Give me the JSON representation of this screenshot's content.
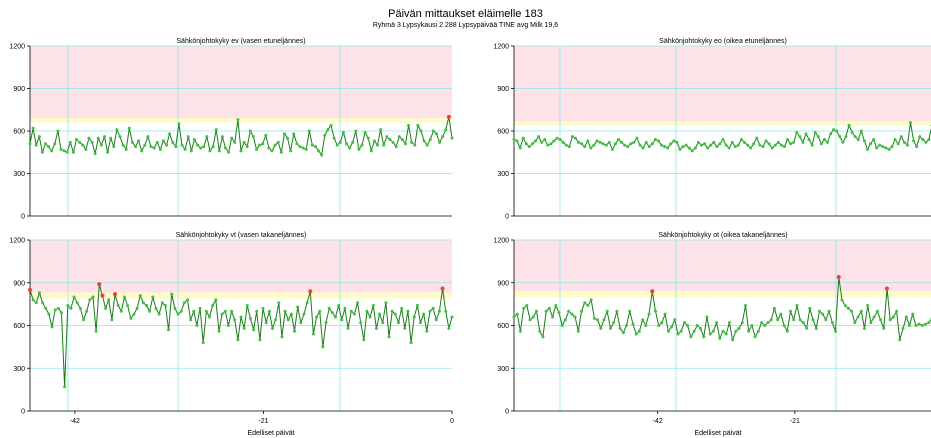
{
  "header": {
    "title": "Päivän mittaukset eläimelle 183",
    "subtitle": "Ryhmä 3   Lypsykausi 2   288 Lypsypäivää   TINE   avg Milk 19,6"
  },
  "colors": {
    "red_zone": "#fde3e7",
    "yellow_zone": "#fdfbc6",
    "grid": "#8ee6ec",
    "line": "#1a7a1a",
    "point": "#3cc23c",
    "alert_point": "#e84040"
  },
  "chart_data": [
    {
      "type": "line",
      "title": "Sähkönjohtokyky ev (vasen etuneljännes)",
      "ylim": [
        0,
        1200
      ],
      "yticks": [
        0,
        300,
        600,
        900,
        1200
      ],
      "xticks": [],
      "xlabel": "",
      "zones": {
        "yellow": [
          660,
          690
        ],
        "red": [
          690,
          1200
        ]
      },
      "series": [
        {
          "values": [
            510,
            620,
            500,
            560,
            450,
            510,
            490,
            460,
            510,
            600,
            470,
            460,
            450,
            520,
            450,
            540,
            520,
            500,
            470,
            550,
            520,
            440,
            550,
            500,
            560,
            450,
            550,
            490,
            610,
            560,
            500,
            470,
            620,
            520,
            490,
            530,
            460,
            500,
            560,
            490,
            480,
            520,
            470,
            530,
            500,
            580,
            520,
            490,
            650,
            500,
            470,
            560,
            460,
            540,
            500,
            480,
            490,
            560,
            460,
            490,
            610,
            460,
            560,
            480,
            450,
            550,
            520,
            680,
            460,
            520,
            490,
            600,
            560,
            470,
            500,
            510,
            570,
            480,
            460,
            500,
            520,
            450,
            580,
            550,
            460,
            580,
            510,
            490,
            480,
            470,
            600,
            500,
            490,
            460,
            430,
            570,
            610,
            640,
            550,
            500,
            520,
            590,
            510,
            480,
            520,
            600,
            470,
            500,
            590,
            550,
            460,
            530,
            500,
            610,
            500,
            560,
            540,
            520,
            490,
            560,
            540,
            510,
            640,
            520,
            500,
            640,
            600,
            530,
            500,
            540,
            600,
            580,
            520,
            560,
            610,
            700,
            550
          ]
        }
      ],
      "alerts": [
        135
      ]
    },
    {
      "type": "line",
      "title": "Sähkönjohtokyky eo (oikea etuneljännes)",
      "ylim": [
        0,
        1200
      ],
      "yticks": [
        0,
        300,
        600,
        900,
        1200
      ],
      "xticks": [],
      "xlabel": "",
      "zones": {
        "yellow": [
          640,
          670
        ],
        "red": [
          670,
          1200
        ]
      },
      "series": [
        {
          "values": [
            540,
            530,
            480,
            550,
            510,
            490,
            510,
            530,
            560,
            520,
            540,
            500,
            510,
            530,
            550,
            540,
            520,
            500,
            490,
            560,
            550,
            520,
            510,
            490,
            530,
            480,
            500,
            530,
            520,
            510,
            500,
            520,
            470,
            510,
            540,
            520,
            500,
            490,
            510,
            520,
            550,
            500,
            480,
            520,
            490,
            510,
            540,
            530,
            500,
            490,
            480,
            510,
            530,
            520,
            470,
            490,
            500,
            480,
            460,
            480,
            520,
            500,
            510,
            480,
            500,
            520,
            490,
            510,
            540,
            500,
            480,
            520,
            490,
            500,
            540,
            520,
            500,
            480,
            510,
            550,
            500,
            490,
            530,
            510,
            480,
            500,
            520,
            500,
            490,
            540,
            510,
            520,
            590,
            560,
            520,
            580,
            540,
            500,
            590,
            560,
            510,
            540,
            520,
            580,
            610,
            600,
            560,
            520,
            560,
            640,
            590,
            560,
            540,
            600,
            530,
            470,
            510,
            540,
            480,
            500,
            490,
            480,
            470,
            490,
            540,
            510,
            560,
            520,
            500,
            660,
            530,
            490,
            560,
            540,
            520,
            540,
            640
          ]
        }
      ],
      "alerts": []
    },
    {
      "type": "line",
      "title": "Sähkönjohtokyky vt (vasen takaneljännes)",
      "ylim": [
        0,
        1200
      ],
      "yticks": [
        0,
        300,
        600,
        900,
        1200
      ],
      "xticks": [
        -42,
        -21,
        0
      ],
      "xlabel": "Edelliset päivät",
      "zones": {
        "yellow": [
          790,
          830
        ],
        "red": [
          830,
          1200
        ]
      },
      "series": [
        {
          "values": [
            850,
            780,
            760,
            830,
            760,
            720,
            680,
            590,
            710,
            720,
            690,
            170,
            740,
            720,
            800,
            760,
            720,
            640,
            700,
            780,
            800,
            560,
            890,
            810,
            720,
            780,
            640,
            820,
            740,
            700,
            800,
            740,
            650,
            680,
            720,
            810,
            760,
            740,
            700,
            800,
            720,
            680,
            760,
            740,
            570,
            820,
            720,
            680,
            700,
            760,
            780,
            640,
            700,
            600,
            720,
            480,
            700,
            660,
            740,
            780,
            560,
            680,
            700,
            600,
            700,
            640,
            500,
            660,
            580,
            740,
            650,
            570,
            700,
            500,
            720,
            620,
            700,
            580,
            640,
            760,
            520,
            700,
            640,
            680,
            560,
            730,
            620,
            680,
            760,
            840,
            540,
            660,
            700,
            450,
            620,
            720,
            690,
            660,
            740,
            640,
            720,
            580,
            700,
            680,
            760,
            620,
            500,
            700,
            660,
            740,
            580,
            680,
            620,
            760,
            520,
            700,
            680,
            620,
            720,
            580,
            700,
            480,
            660,
            740,
            620,
            680,
            560,
            700,
            720,
            640,
            700,
            860,
            700,
            580,
            660
          ]
        }
      ],
      "alerts": [
        0,
        22,
        23,
        27,
        89,
        131
      ]
    },
    {
      "type": "line",
      "title": "Sähkönjohtokyky ot (oikea takaneljännes)",
      "ylim": [
        0,
        1200
      ],
      "yticks": [
        0,
        300,
        600,
        900,
        1200
      ],
      "xticks": [
        -42,
        -21
      ],
      "xlabel": "Edelliset päivät",
      "zones": {
        "yellow": [
          800,
          840
        ],
        "red": [
          840,
          1200
        ]
      },
      "series": [
        {
          "values": [
            660,
            680,
            560,
            720,
            740,
            640,
            660,
            700,
            560,
            520,
            700,
            720,
            660,
            740,
            690,
            600,
            640,
            700,
            680,
            660,
            560,
            700,
            760,
            740,
            780,
            650,
            640,
            580,
            640,
            700,
            580,
            620,
            700,
            580,
            550,
            600,
            700,
            610,
            540,
            560,
            640,
            600,
            680,
            840,
            700,
            600,
            620,
            680,
            560,
            590,
            640,
            540,
            560,
            620,
            600,
            520,
            560,
            600,
            580,
            520,
            660,
            540,
            560,
            620,
            510,
            560,
            540,
            620,
            500,
            560,
            580,
            620,
            740,
            560,
            600,
            520,
            560,
            620,
            600,
            620,
            640,
            720,
            640,
            680,
            600,
            560,
            700,
            640,
            740,
            640,
            620,
            580,
            720,
            640,
            580,
            700,
            680,
            640,
            700,
            620,
            560,
            940,
            780,
            740,
            720,
            700,
            620,
            660,
            700,
            580,
            740,
            620,
            660,
            700,
            640,
            580,
            860,
            640,
            660,
            700,
            500,
            580,
            660,
            600,
            680,
            600,
            610,
            600,
            610,
            620,
            650
          ]
        }
      ],
      "alerts": [
        43,
        101,
        116
      ]
    }
  ]
}
